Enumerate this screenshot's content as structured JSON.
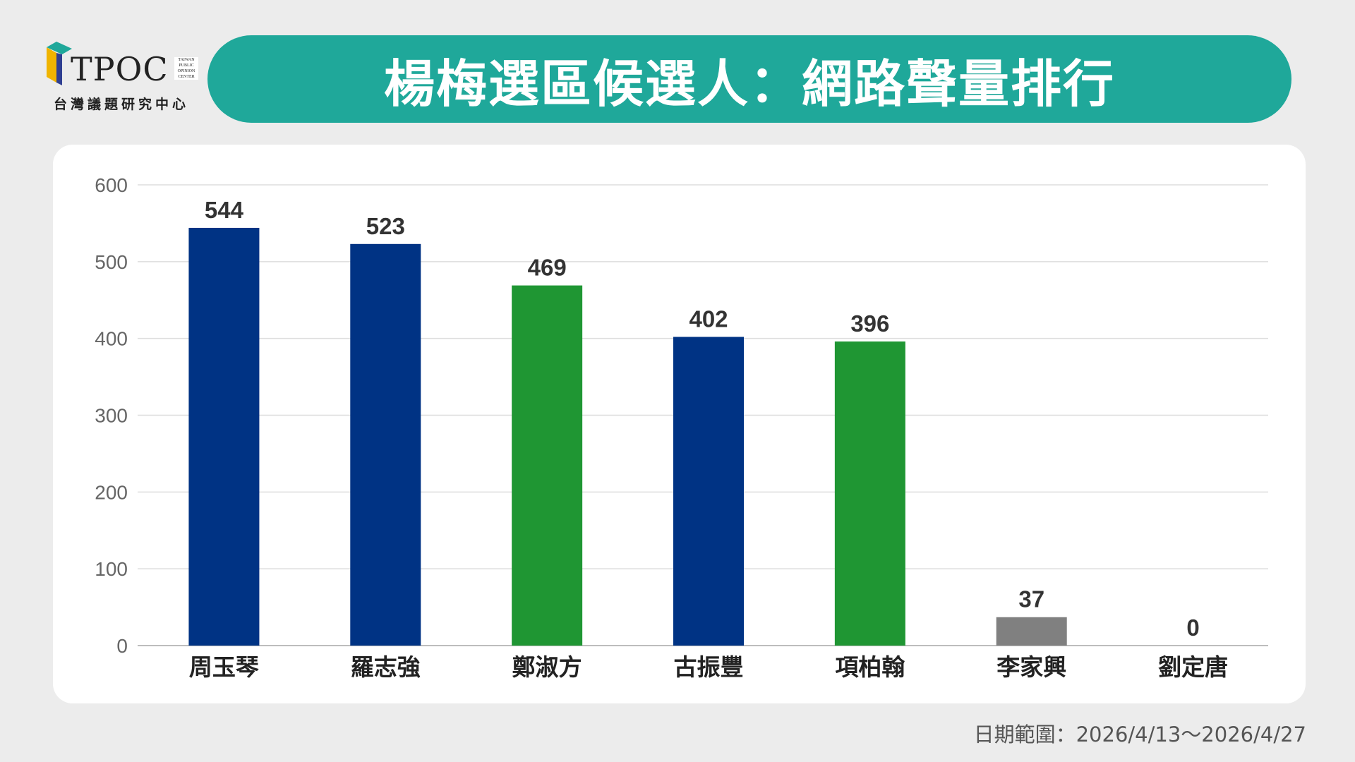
{
  "logo": {
    "name": "TPOC",
    "mini_lines": [
      "TAIWAN",
      "PUBLIC",
      "OPINION",
      "CENTER"
    ],
    "subtitle": "台灣議題研究中心"
  },
  "title": "楊梅選區候選人：網路聲量排行",
  "date_range": "日期範圍：2026/4/13～2026/4/27",
  "chart_data": {
    "type": "bar",
    "categories": [
      "周玉琴",
      "羅志強",
      "鄭淑方",
      "古振豐",
      "項柏翰",
      "李家興",
      "劉定唐"
    ],
    "values": [
      544,
      523,
      469,
      402,
      396,
      37,
      0
    ],
    "colors": [
      "#003384",
      "#003384",
      "#1f9633",
      "#003384",
      "#1f9633",
      "#808080",
      "#808080"
    ],
    "ylim": [
      0,
      600
    ],
    "yticks": [
      0,
      100,
      200,
      300,
      400,
      500,
      600
    ],
    "grid": true,
    "data_labels": true,
    "title": "",
    "xlabel": "",
    "ylabel": ""
  }
}
